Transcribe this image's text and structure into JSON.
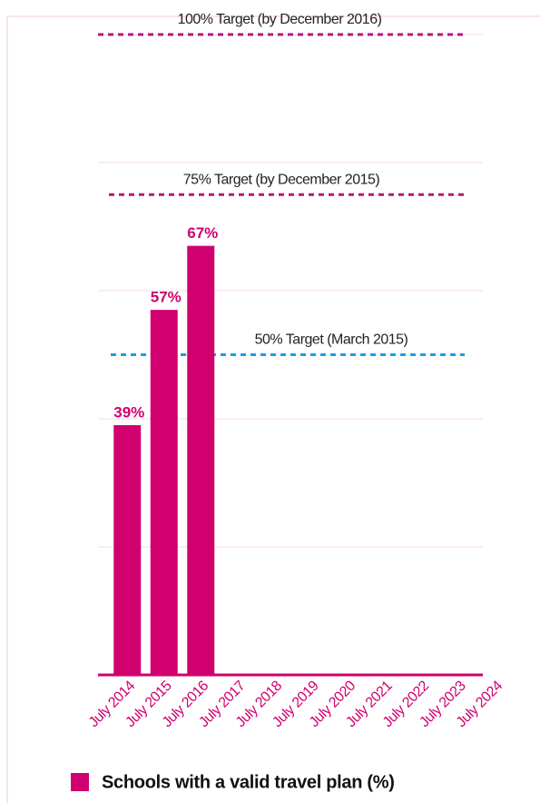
{
  "chart_data": {
    "type": "bar",
    "categories": [
      "July 2014",
      "July 2015",
      "July 2016",
      "July 2017",
      "July 2018",
      "July 2019",
      "July 2020",
      "July 2021",
      "July 2022",
      "July 2023",
      "July 2024"
    ],
    "series": [
      {
        "name": "Schools with a valid travel plan (%)",
        "color": "#d0006f",
        "values": [
          39,
          57,
          67,
          null,
          null,
          null,
          null,
          null,
          null,
          null,
          null
        ],
        "value_labels": [
          "39%",
          "57%",
          "67%",
          null,
          null,
          null,
          null,
          null,
          null,
          null,
          null
        ]
      }
    ],
    "ylim": [
      0,
      100
    ],
    "yticks": [
      0,
      20,
      40,
      60,
      80,
      100
    ],
    "grid": true,
    "annotations": [
      {
        "text": "100% Target (by December 2016)",
        "value": 100,
        "color": "#b5177f"
      },
      {
        "text": "75% Target (by December 2015)",
        "value": 75,
        "color": "#b5177f"
      },
      {
        "text": "50% Target (March 2015)",
        "value": 50,
        "color": "#1a9fe0"
      }
    ]
  }
}
